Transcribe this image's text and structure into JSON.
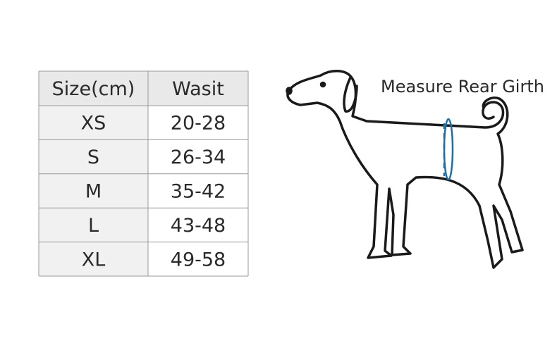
{
  "table": {
    "headers": [
      "Size(cm)",
      "Wasit"
    ],
    "rows": [
      [
        "XS",
        "20-28"
      ],
      [
        "S",
        "26-34"
      ],
      [
        "M",
        "35-42"
      ],
      [
        "L",
        "43-48"
      ],
      [
        "XL",
        "49-58"
      ]
    ]
  },
  "diagram": {
    "label": "Measure Rear Girth"
  }
}
